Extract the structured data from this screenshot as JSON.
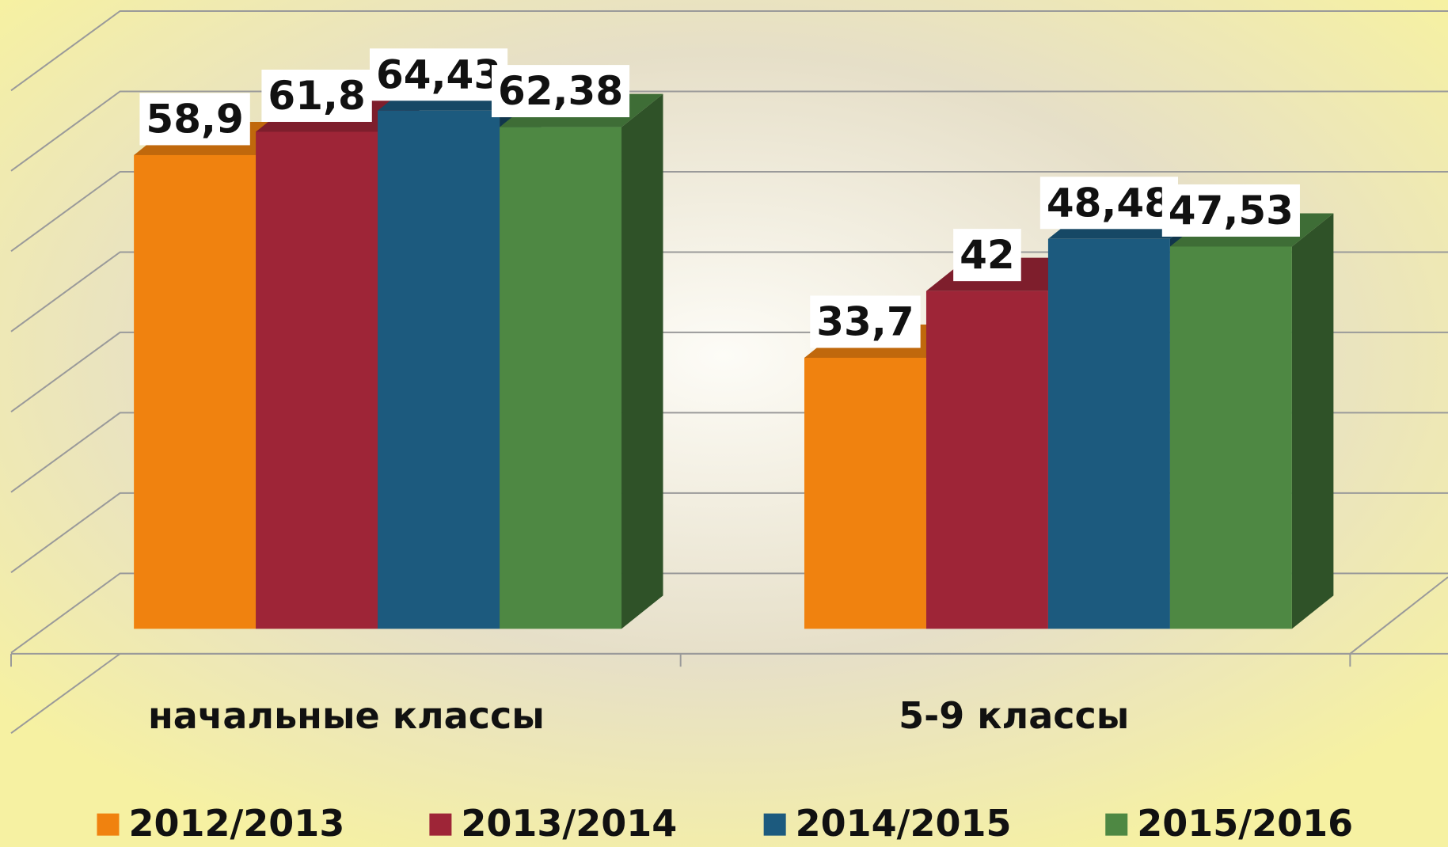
{
  "chart_data": {
    "type": "bar3d",
    "categories": [
      "начальные классы",
      "5-9 классы"
    ],
    "series": [
      {
        "name": "2012/2013",
        "color": "#f0820f",
        "values": [
          58.9,
          33.7
        ],
        "value_labels": [
          "58,9",
          "33,7"
        ]
      },
      {
        "name": "2013/2014",
        "color": "#9e2537",
        "values": [
          61.8,
          42
        ],
        "value_labels": [
          "61,8",
          "42"
        ]
      },
      {
        "name": "2014/2015",
        "color": "#1c5a7e",
        "values": [
          64.43,
          48.48
        ],
        "value_labels": [
          "64,43",
          "48,48"
        ]
      },
      {
        "name": "2015/2016",
        "color": "#4e8843",
        "values": [
          62.38,
          47.53
        ],
        "value_labels": [
          "62,38",
          "47,53"
        ]
      }
    ],
    "ylim": [
      0,
      80
    ],
    "yticks": [
      0,
      10,
      20,
      30,
      40,
      50,
      60,
      70,
      80
    ],
    "grid": true,
    "legend": "bottom"
  }
}
